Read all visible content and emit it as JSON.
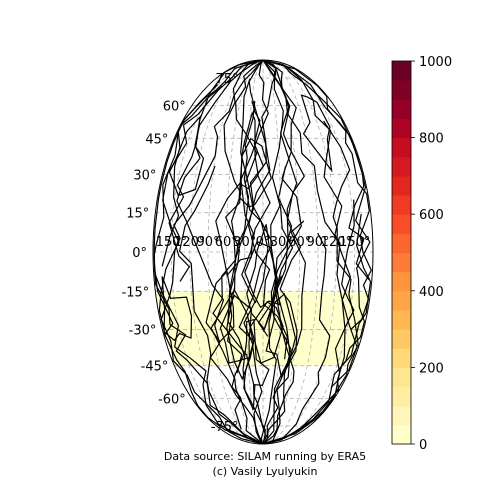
{
  "chart_data": {
    "type": "map",
    "projection": "mollweide",
    "grid": true,
    "lat_labels": [
      "75°",
      "60°",
      "45°",
      "30°",
      "15°",
      "0°",
      "-15°",
      "-30°",
      "-45°",
      "-60°",
      "-75°"
    ],
    "lat_values": [
      75,
      60,
      45,
      30,
      15,
      0,
      -15,
      -30,
      -45,
      -60,
      -75
    ],
    "lon_labels": [
      "150°",
      "120°",
      "90°",
      "60°",
      "30°",
      "0°",
      "30°",
      "60°",
      "90°",
      "120°",
      "150°"
    ],
    "lon_values": [
      -150,
      -120,
      -90,
      -60,
      -30,
      0,
      30,
      60,
      90,
      120,
      150
    ],
    "colorbar": {
      "min": 0,
      "max": 1000,
      "ticks": [
        "0",
        "200",
        "400",
        "600",
        "800",
        "1000"
      ],
      "tick_values": [
        0,
        200,
        400,
        600,
        800,
        1000
      ],
      "colormap": "YlOrRd"
    },
    "shaded_region": {
      "lat_min": -45,
      "lat_max": -15,
      "value_range": [
        50,
        150
      ],
      "color": "#ffffcc"
    }
  },
  "credits": {
    "source": "Data source: SILAM running by ERA5",
    "author": "(c) Vasily Lyulyukin"
  }
}
